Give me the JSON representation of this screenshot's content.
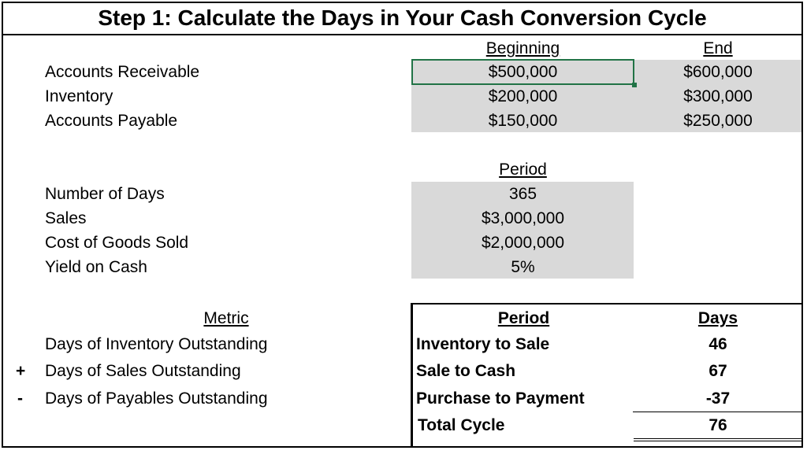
{
  "title": "Step 1: Calculate the Days in Your Cash Conversion Cycle",
  "balances": {
    "headers": {
      "beginning": "Beginning",
      "end": "End"
    },
    "rows": [
      {
        "label": "Accounts Receivable",
        "beginning": "$500,000",
        "end": "$600,000"
      },
      {
        "label": "Inventory",
        "beginning": "$200,000",
        "end": "$300,000"
      },
      {
        "label": "Accounts Payable",
        "beginning": "$150,000",
        "end": "$250,000"
      }
    ]
  },
  "period": {
    "header": "Period",
    "rows": [
      {
        "label": "Number of Days",
        "value": "365"
      },
      {
        "label": "Sales",
        "value": "$3,000,000"
      },
      {
        "label": "Cost of Goods Sold",
        "value": "$2,000,000"
      },
      {
        "label": "Yield on Cash",
        "value": "5%"
      }
    ]
  },
  "metrics": {
    "headers": {
      "metric": "Metric",
      "period": "Period",
      "days": "Days"
    },
    "rows": [
      {
        "sign": "",
        "metric": "Days of Inventory Outstanding",
        "period": "Inventory to Sale",
        "days": "46"
      },
      {
        "sign": "+",
        "metric": "Days of Sales Outstanding",
        "period": "Sale to Cash",
        "days": "67"
      },
      {
        "sign": "-",
        "metric": "Days of Payables Outstanding",
        "period": "Purchase to Payment",
        "days": "-37"
      }
    ],
    "total": {
      "period": "Total Cycle",
      "days": "76"
    }
  },
  "colors": {
    "input_fill": "#d9d9d9",
    "selection": "#217346"
  }
}
